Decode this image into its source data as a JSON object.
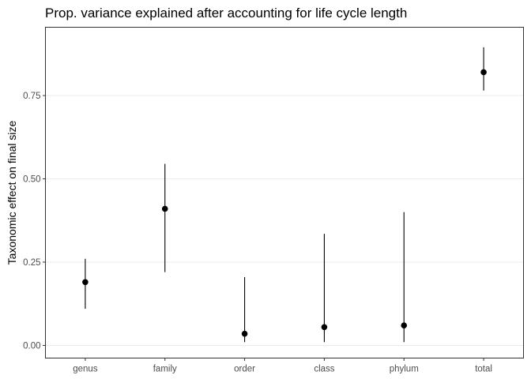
{
  "chart_data": {
    "type": "scatter",
    "title": "Prop. variance explained after accounting for life cycle length",
    "xlabel": "",
    "ylabel": "Taxonomic effect on final size",
    "categories": [
      "genus",
      "family",
      "order",
      "class",
      "phylum",
      "total"
    ],
    "values": [
      0.19,
      0.41,
      0.035,
      0.055,
      0.06,
      0.82
    ],
    "lower": [
      0.11,
      0.22,
      0.01,
      0.01,
      0.01,
      0.765
    ],
    "upper": [
      0.26,
      0.545,
      0.205,
      0.335,
      0.4,
      0.895
    ],
    "ylim": [
      -0.038,
      0.955
    ],
    "yticks": [
      0.0,
      0.25,
      0.5,
      0.75
    ],
    "ytick_labels": [
      "0.00",
      "0.25",
      "0.50",
      "0.75"
    ],
    "grid": true,
    "legend": "none",
    "colors": {
      "point": "#000000",
      "grid": "#ebebeb",
      "panel_border": "#333333"
    }
  }
}
